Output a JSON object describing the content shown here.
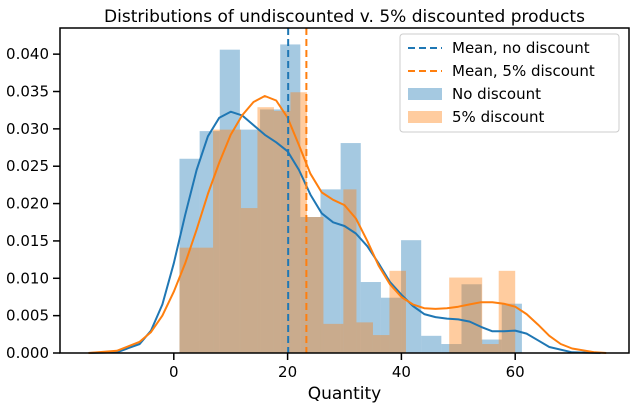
{
  "chart_data": {
    "type": "histogram-kde",
    "title": "Distributions of undiscounted v. 5% discounted products",
    "xlabel": "Quantity",
    "ylabel": "",
    "xlim": [
      -20,
      80
    ],
    "ylim": [
      0,
      0.0435
    ],
    "x_ticks": [
      0,
      20,
      40,
      60
    ],
    "y_ticks": [
      0.0,
      0.005,
      0.01,
      0.015,
      0.02,
      0.025,
      0.03,
      0.035,
      0.04
    ],
    "y_tick_labels": [
      "0.000",
      "0.005",
      "0.010",
      "0.015",
      "0.020",
      "0.025",
      "0.030",
      "0.035",
      "0.040"
    ],
    "legend_position": "top-right",
    "histograms": [
      {
        "name": "No discount",
        "color": "#1f77b4",
        "opacity": 0.4,
        "bins": [
          {
            "x0": 1,
            "x1": 4.54,
            "value": 0.026
          },
          {
            "x0": 4.54,
            "x1": 8.08,
            "value": 0.0297
          },
          {
            "x0": 8.08,
            "x1": 11.62,
            "value": 0.0406
          },
          {
            "x0": 11.62,
            "x1": 15.16,
            "value": 0.0299
          },
          {
            "x0": 15.16,
            "x1": 18.7,
            "value": 0.0326
          },
          {
            "x0": 18.7,
            "x1": 22.24,
            "value": 0.0413
          },
          {
            "x0": 22.24,
            "x1": 25.78,
            "value": 0.0182
          },
          {
            "x0": 25.78,
            "x1": 29.32,
            "value": 0.0219
          },
          {
            "x0": 29.32,
            "x1": 32.86,
            "value": 0.0281
          },
          {
            "x0": 32.86,
            "x1": 36.4,
            "value": 0.0095
          },
          {
            "x0": 36.4,
            "x1": 39.94,
            "value": 0.0074
          },
          {
            "x0": 39.94,
            "x1": 43.48,
            "value": 0.0151
          },
          {
            "x0": 43.48,
            "x1": 47.02,
            "value": 0.0023
          },
          {
            "x0": 47.02,
            "x1": 50.56,
            "value": 0.0012
          },
          {
            "x0": 50.56,
            "x1": 54.1,
            "value": 0.0092
          },
          {
            "x0": 54.1,
            "x1": 57.64,
            "value": 0.0018
          },
          {
            "x0": 57.64,
            "x1": 61.18,
            "value": 0.0066
          }
        ]
      },
      {
        "name": "5% discount",
        "color": "#ff7f0e",
        "opacity": 0.4,
        "bins": [
          {
            "x0": 1,
            "x1": 6.9,
            "value": 0.0141
          },
          {
            "x0": 6.9,
            "x1": 11.8,
            "value": 0.0299
          },
          {
            "x0": 11.8,
            "x1": 14.7,
            "value": 0.0194
          },
          {
            "x0": 14.7,
            "x1": 17.6,
            "value": 0.0329
          },
          {
            "x0": 17.6,
            "x1": 20.5,
            "value": 0.0324
          },
          {
            "x0": 20.5,
            "x1": 23.4,
            "value": 0.0349
          },
          {
            "x0": 23.4,
            "x1": 26.3,
            "value": 0.0182
          },
          {
            "x0": 26.3,
            "x1": 29.8,
            "value": 0.0039
          },
          {
            "x0": 29.8,
            "x1": 32.1,
            "value": 0.0219
          },
          {
            "x0": 32.1,
            "x1": 35.0,
            "value": 0.0041
          },
          {
            "x0": 35.0,
            "x1": 37.9,
            "value": 0.0024
          },
          {
            "x0": 37.9,
            "x1": 40.8,
            "value": 0.011
          },
          {
            "x0": 40.8,
            "x1": 48.4,
            "value": 0.0
          },
          {
            "x0": 48.4,
            "x1": 54.2,
            "value": 0.0101
          },
          {
            "x0": 54.2,
            "x1": 57.1,
            "value": 0.0012
          },
          {
            "x0": 57.1,
            "x1": 60.0,
            "value": 0.011
          }
        ]
      }
    ],
    "kde": [
      {
        "name": "No discount",
        "color": "#1f77b4",
        "points": [
          [
            -15,
            0.0
          ],
          [
            -10,
            0.0001
          ],
          [
            -6,
            0.0012
          ],
          [
            -4,
            0.003
          ],
          [
            -2,
            0.0065
          ],
          [
            0,
            0.012
          ],
          [
            2,
            0.0185
          ],
          [
            4,
            0.0245
          ],
          [
            6,
            0.029
          ],
          [
            8,
            0.0315
          ],
          [
            10,
            0.0323
          ],
          [
            12,
            0.0318
          ],
          [
            14,
            0.0305
          ],
          [
            16,
            0.0292
          ],
          [
            18,
            0.0282
          ],
          [
            20,
            0.027
          ],
          [
            22,
            0.0245
          ],
          [
            24,
            0.0212
          ],
          [
            26,
            0.0187
          ],
          [
            28,
            0.0175
          ],
          [
            30,
            0.017
          ],
          [
            32,
            0.016
          ],
          [
            34,
            0.0143
          ],
          [
            36,
            0.012
          ],
          [
            38,
            0.0095
          ],
          [
            40,
            0.0078
          ],
          [
            42,
            0.0063
          ],
          [
            44,
            0.0052
          ],
          [
            46,
            0.0048
          ],
          [
            48,
            0.0046
          ],
          [
            50,
            0.0045
          ],
          [
            52,
            0.0042
          ],
          [
            54,
            0.0035
          ],
          [
            56,
            0.0029
          ],
          [
            58,
            0.0029
          ],
          [
            60,
            0.003
          ],
          [
            62,
            0.0026
          ],
          [
            64,
            0.0017
          ],
          [
            66,
            0.0008
          ],
          [
            70,
            0.0001
          ],
          [
            75,
            0.0
          ]
        ]
      },
      {
        "name": "5% discount",
        "color": "#ff7f0e",
        "points": [
          [
            -15,
            0.0
          ],
          [
            -10,
            0.0003
          ],
          [
            -6,
            0.0015
          ],
          [
            -4,
            0.0028
          ],
          [
            -2,
            0.005
          ],
          [
            0,
            0.0082
          ],
          [
            2,
            0.012
          ],
          [
            4,
            0.0165
          ],
          [
            6,
            0.0213
          ],
          [
            8,
            0.0255
          ],
          [
            10,
            0.0292
          ],
          [
            12,
            0.0318
          ],
          [
            14,
            0.0336
          ],
          [
            16,
            0.0344
          ],
          [
            18,
            0.0338
          ],
          [
            20,
            0.0315
          ],
          [
            22,
            0.0278
          ],
          [
            24,
            0.024
          ],
          [
            26,
            0.0215
          ],
          [
            28,
            0.0205
          ],
          [
            30,
            0.0198
          ],
          [
            32,
            0.018
          ],
          [
            34,
            0.015
          ],
          [
            36,
            0.0117
          ],
          [
            38,
            0.0092
          ],
          [
            40,
            0.0075
          ],
          [
            42,
            0.0065
          ],
          [
            44,
            0.006
          ],
          [
            46,
            0.0059
          ],
          [
            48,
            0.006
          ],
          [
            50,
            0.0062
          ],
          [
            52,
            0.0065
          ],
          [
            54,
            0.0068
          ],
          [
            56,
            0.0068
          ],
          [
            58,
            0.0066
          ],
          [
            60,
            0.0062
          ],
          [
            62,
            0.0052
          ],
          [
            64,
            0.0038
          ],
          [
            66,
            0.0023
          ],
          [
            68,
            0.0012
          ],
          [
            70,
            0.0006
          ],
          [
            74,
            0.0001
          ],
          [
            76,
            0.0
          ]
        ]
      }
    ],
    "vlines": [
      {
        "name": "Mean, no discount",
        "x": 20.1,
        "color": "#1f77b4",
        "dashed": true
      },
      {
        "name": "Mean, 5% discount",
        "x": 23.3,
        "color": "#ff7f0e",
        "dashed": true
      }
    ],
    "legend": [
      {
        "label": "Mean, no discount",
        "kind": "dashed-line",
        "color": "#1f77b4"
      },
      {
        "label": "Mean, 5% discount",
        "kind": "dashed-line",
        "color": "#ff7f0e"
      },
      {
        "label": "No discount",
        "kind": "patch",
        "color": "#1f77b4"
      },
      {
        "label": "5% discount",
        "kind": "patch",
        "color": "#ff7f0e"
      }
    ]
  }
}
